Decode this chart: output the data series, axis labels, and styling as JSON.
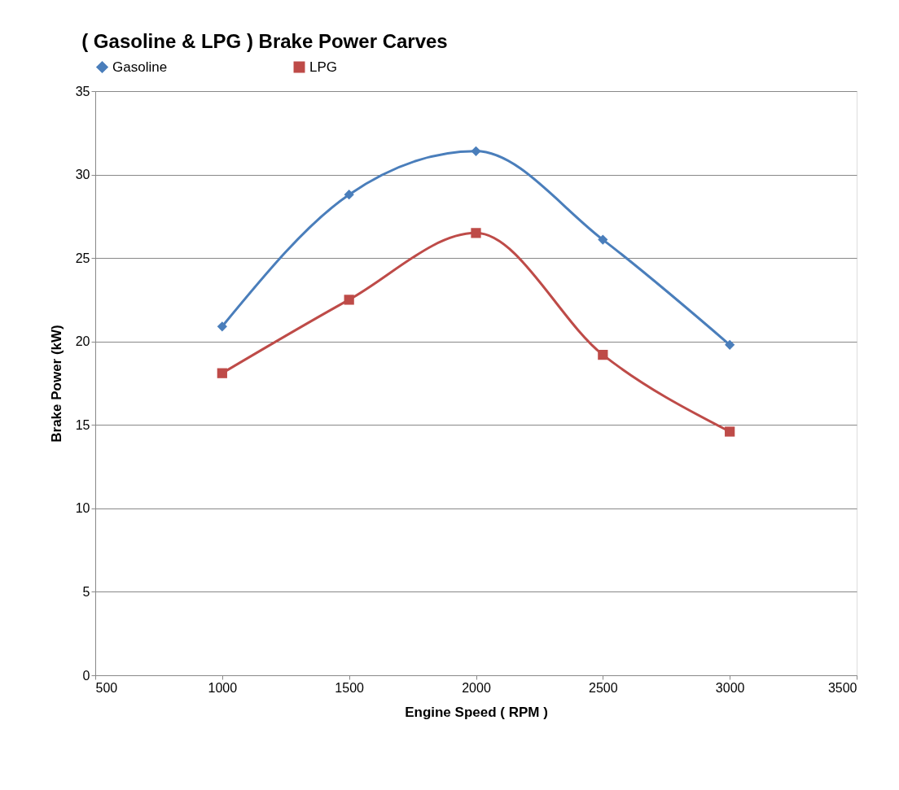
{
  "chart_data": {
    "type": "line",
    "title": "( Gasoline & LPG ) Brake Power Carves",
    "xlabel": "Engine Speed ( RPM )",
    "ylabel": "Brake Power (kW)",
    "x": [
      1000,
      1500,
      2000,
      2500,
      3000
    ],
    "series": [
      {
        "name": "Gasoline",
        "color": "#4a7ebb",
        "marker": "diamond",
        "values": [
          20.9,
          28.8,
          31.4,
          26.1,
          19.8
        ]
      },
      {
        "name": "LPG",
        "color": "#be4b48",
        "marker": "square",
        "values": [
          18.1,
          22.5,
          26.5,
          19.2,
          14.6
        ]
      }
    ],
    "xlim": [
      500,
      3500
    ],
    "xticks": [
      500,
      1000,
      1500,
      2000,
      2500,
      3000,
      3500
    ],
    "ylim": [
      0,
      35
    ],
    "yticks": [
      0,
      5,
      10,
      15,
      20,
      25,
      30,
      35
    ],
    "grid": "y",
    "legend": "top",
    "line_style": "solid"
  }
}
